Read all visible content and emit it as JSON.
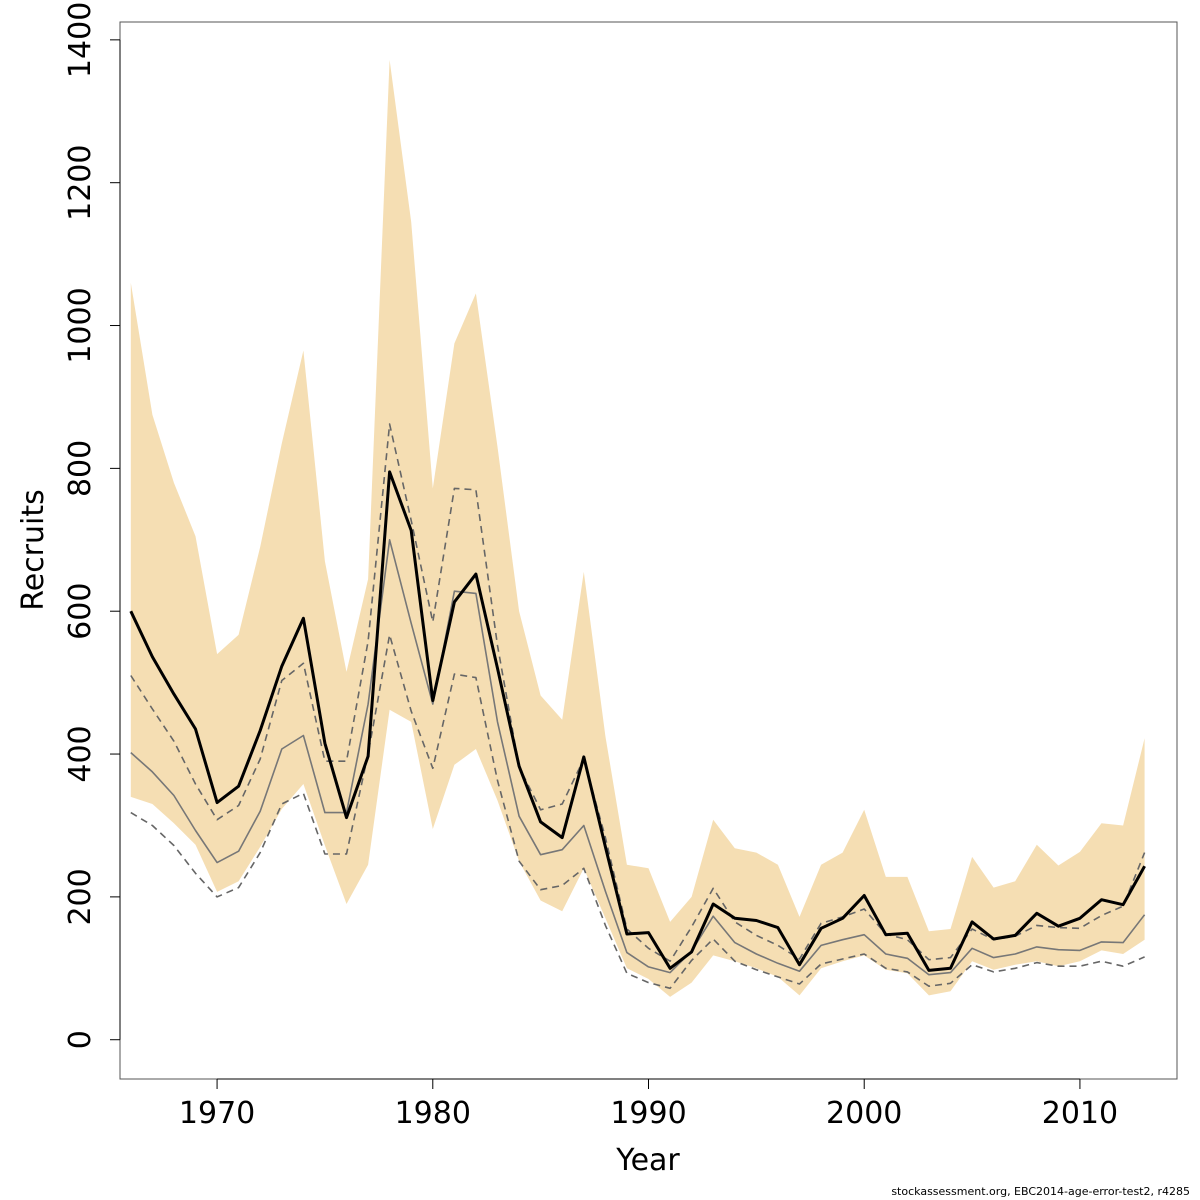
{
  "chart_data": {
    "type": "line",
    "title": "",
    "xlabel": "Year",
    "ylabel": "Recruits",
    "xlim": [
      1965.5,
      2014.5
    ],
    "ylim": [
      -55,
      1425
    ],
    "xticks": [
      1970,
      1980,
      1990,
      2000,
      2010
    ],
    "yticks": [
      0,
      200,
      400,
      600,
      800,
      1000,
      1200,
      1400
    ],
    "grid": false,
    "legend": "none",
    "x": [
      1966,
      1967,
      1968,
      1969,
      1970,
      1971,
      1972,
      1973,
      1974,
      1975,
      1976,
      1977,
      1978,
      1979,
      1980,
      1981,
      1982,
      1983,
      1984,
      1985,
      1986,
      1987,
      1988,
      1989,
      1990,
      1991,
      1992,
      1993,
      1994,
      1995,
      1996,
      1997,
      1998,
      1999,
      2000,
      2001,
      2002,
      2003,
      2004,
      2005,
      2006,
      2007,
      2008,
      2009,
      2010,
      2011,
      2012,
      2013
    ],
    "band": {
      "color": "#f5deb3",
      "upper": [
        1060,
        875,
        780,
        705,
        540,
        567,
        690,
        835,
        965,
        670,
        515,
        645,
        1372,
        1145,
        772,
        975,
        1045,
        830,
        600,
        482,
        448,
        655,
        425,
        245,
        240,
        165,
        200,
        308,
        268,
        262,
        245,
        172,
        245,
        262,
        322,
        228,
        228,
        152,
        155,
        256,
        213,
        222,
        273,
        244,
        263,
        303,
        300,
        422
      ],
      "lower": [
        340,
        330,
        303,
        273,
        207,
        222,
        270,
        323,
        358,
        272,
        190,
        245,
        462,
        445,
        295,
        385,
        407,
        335,
        250,
        195,
        180,
        240,
        170,
        100,
        85,
        60,
        80,
        118,
        110,
        100,
        88,
        62,
        100,
        110,
        118,
        98,
        93,
        62,
        68,
        110,
        98,
        105,
        110,
        103,
        110,
        125,
        120,
        140
      ]
    },
    "series": [
      {
        "style": "solid-black-thick",
        "color": "#000000",
        "values": [
          600,
          536,
          484,
          435,
          332,
          355,
          433,
          523,
          590,
          415,
          311,
          397,
          795,
          713,
          475,
          613,
          652,
          520,
          383,
          305,
          283,
          396,
          270,
          148,
          150,
          100,
          123,
          190,
          170,
          167,
          157,
          105,
          156,
          170,
          202,
          147,
          149,
          97,
          100,
          165,
          141,
          146,
          177,
          159,
          170,
          196,
          189,
          243
        ]
      },
      {
        "style": "solid-grey",
        "color": "#777777",
        "values": [
          402,
          375,
          342,
          293,
          248,
          264,
          320,
          407,
          426,
          318,
          318,
          470,
          700,
          583,
          470,
          628,
          625,
          445,
          313,
          259,
          266,
          300,
          208,
          122,
          102,
          94,
          124,
          173,
          136,
          120,
          107,
          96,
          132,
          140,
          147,
          120,
          114,
          91,
          94,
          128,
          115,
          120,
          130,
          126,
          125,
          137,
          136,
          175
        ]
      },
      {
        "style": "dashed-grey",
        "color": "#666666",
        "values": [
          510,
          463,
          418,
          358,
          308,
          328,
          393,
          503,
          527,
          390,
          390,
          558,
          862,
          727,
          585,
          772,
          770,
          552,
          382,
          322,
          330,
          393,
          283,
          155,
          128,
          110,
          158,
          212,
          165,
          146,
          132,
          113,
          163,
          172,
          183,
          148,
          140,
          112,
          115,
          155,
          140,
          145,
          160,
          157,
          156,
          174,
          187,
          262
        ]
      },
      {
        "style": "dashed-grey",
        "color": "#666666",
        "values": [
          318,
          300,
          272,
          233,
          200,
          213,
          262,
          330,
          345,
          260,
          260,
          400,
          567,
          460,
          380,
          512,
          507,
          363,
          250,
          210,
          216,
          240,
          160,
          93,
          80,
          72,
          111,
          141,
          110,
          98,
          88,
          78,
          106,
          113,
          120,
          100,
          95,
          75,
          79,
          105,
          95,
          100,
          108,
          103,
          103,
          110,
          103,
          116
        ]
      }
    ]
  },
  "footnote": "stockassessment.org, EBC2014-age-error-test2, r4285"
}
